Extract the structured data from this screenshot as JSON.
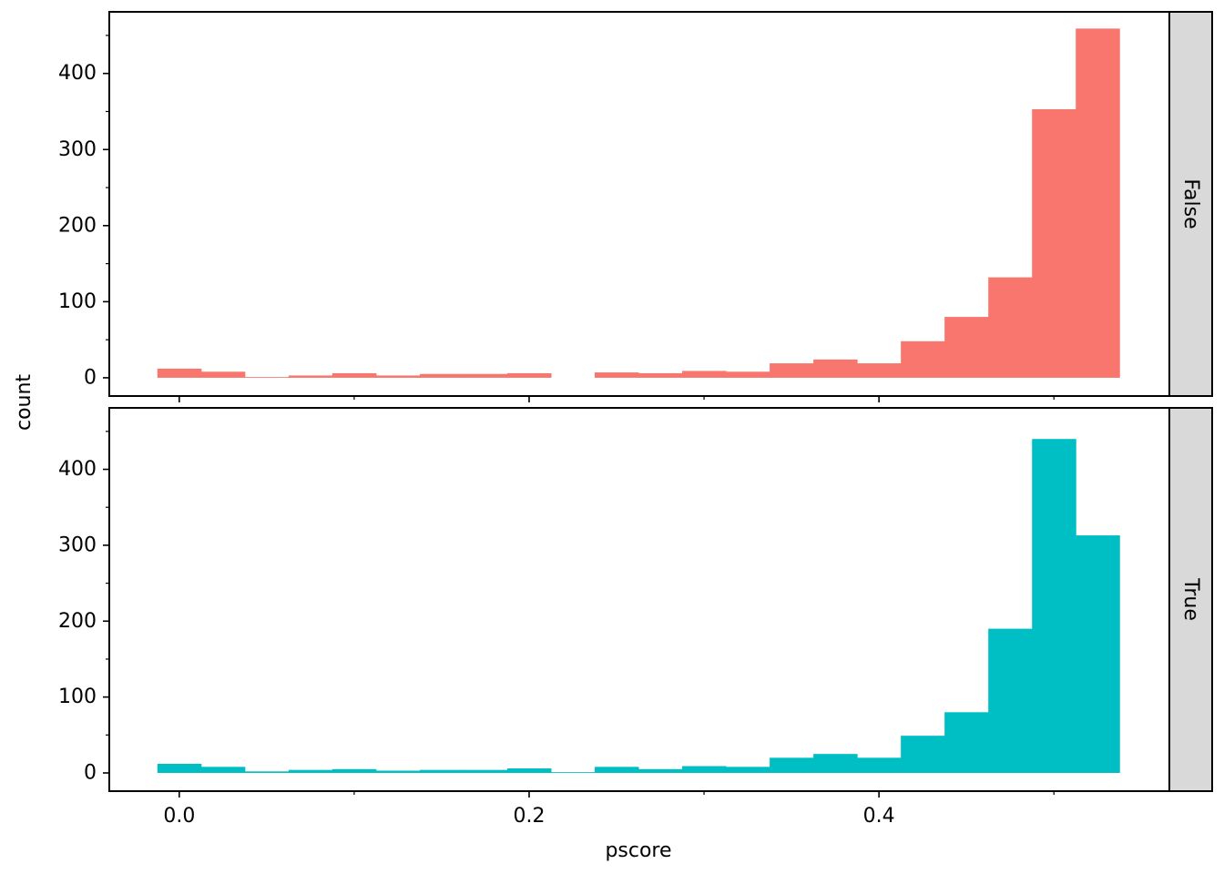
{
  "chart_data": {
    "type": "bar",
    "xlabel": "pscore",
    "ylabel": "count",
    "bin_width": 0.025,
    "bin_starts": [
      -0.0125,
      0.0125,
      0.0375,
      0.0625,
      0.0875,
      0.1125,
      0.1375,
      0.1625,
      0.1875,
      0.2125,
      0.2375,
      0.2625,
      0.2875,
      0.3125,
      0.3375,
      0.3625,
      0.3875,
      0.4125,
      0.4375,
      0.4625,
      0.4875,
      0.5125
    ],
    "xlim": [
      -0.04,
      0.566
    ],
    "xticks": [
      0.0,
      0.2,
      0.4
    ],
    "xtick_labels": [
      "0.0",
      "0.2",
      "0.4"
    ],
    "x_minor_ticks": [
      0.1,
      0.3,
      0.5
    ],
    "ylim": [
      -24,
      481
    ],
    "yticks": [
      0,
      100,
      200,
      300,
      400
    ],
    "ytick_labels": [
      "0",
      "100",
      "200",
      "300",
      "400"
    ],
    "y_minor_ticks": [
      50,
      150,
      250,
      350,
      450
    ],
    "panels": [
      {
        "strip_label": "False",
        "color": "#F8766D",
        "counts": [
          12,
          8,
          1,
          3,
          6,
          3,
          5,
          5,
          6,
          0,
          7,
          6,
          9,
          8,
          19,
          24,
          19,
          48,
          80,
          132,
          353,
          459
        ]
      },
      {
        "strip_label": "True",
        "color": "#00BFC4",
        "counts": [
          12,
          8,
          2,
          4,
          5,
          3,
          4,
          4,
          6,
          1,
          8,
          5,
          9,
          8,
          20,
          25,
          20,
          49,
          80,
          190,
          440,
          313
        ]
      }
    ]
  }
}
